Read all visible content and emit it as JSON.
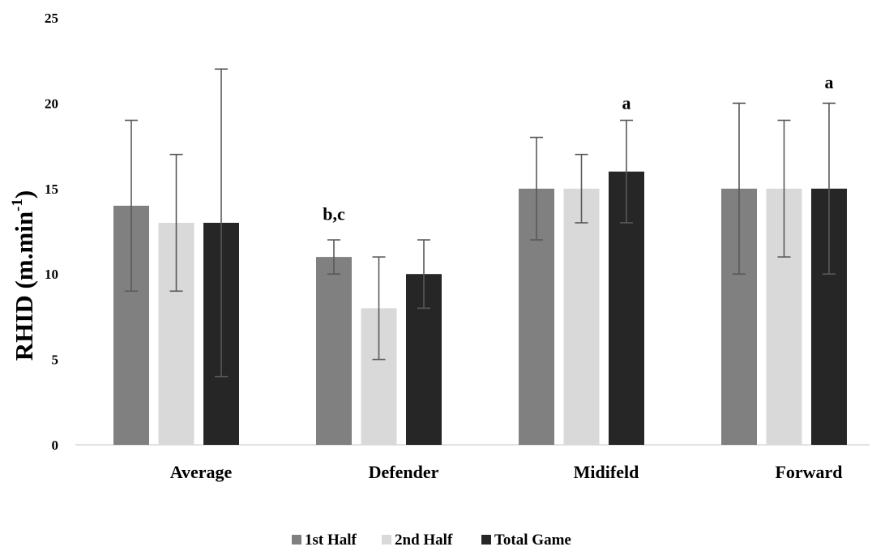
{
  "chart_data": {
    "type": "bar",
    "categories": [
      "Average",
      "Defender",
      "Midifeld",
      "Forward"
    ],
    "series": [
      {
        "name": "1st Half",
        "color": "#808080",
        "values": [
          14,
          11,
          15,
          15
        ],
        "err_low": [
          9,
          10,
          12,
          10
        ],
        "err_high": [
          19,
          12,
          18,
          20
        ]
      },
      {
        "name": "2nd Half",
        "color": "#d9d9d9",
        "values": [
          13,
          8,
          15,
          15
        ],
        "err_low": [
          9,
          5,
          13,
          11
        ],
        "err_high": [
          17,
          11,
          17,
          19
        ]
      },
      {
        "name": "Total Game",
        "color": "#262626",
        "values": [
          13,
          10,
          16,
          15
        ],
        "err_low": [
          4,
          8,
          13,
          10
        ],
        "err_high": [
          22,
          12,
          19,
          20
        ]
      }
    ],
    "annotations": [
      {
        "text": "b,c",
        "category": "Defender",
        "series": "1st Half",
        "y": 13.5
      },
      {
        "text": "a",
        "category": "Midifeld",
        "series": "Total Game",
        "y": 20
      },
      {
        "text": "a",
        "category": "Forward",
        "series": "Total Game",
        "y": 21.2
      }
    ],
    "ylabel_main": "RHID (m.min",
    "ylabel_sup": "-1",
    "ylabel_close": ")",
    "ylim": [
      0,
      25
    ],
    "yticks": [
      "0",
      "5",
      "10",
      "15",
      "20",
      "25"
    ],
    "grid": false,
    "legend_position": "bottom"
  }
}
